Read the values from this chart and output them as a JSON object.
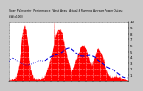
{
  "title": "Solar PV/Inverter Performance West Array Actual & Running Average Power Output",
  "bg_color": "#c8c8c8",
  "plot_bg_color": "#ffffff",
  "bar_color": "#ff0000",
  "avg_color": "#0000dd",
  "n_points": 350,
  "y_max": 10,
  "y_ticks": [
    1,
    2,
    3,
    4,
    5,
    6,
    7,
    8,
    9,
    10
  ],
  "grid_color": "#dddddd",
  "title_fontsize": 3.2,
  "tick_fontsize": 2.8
}
